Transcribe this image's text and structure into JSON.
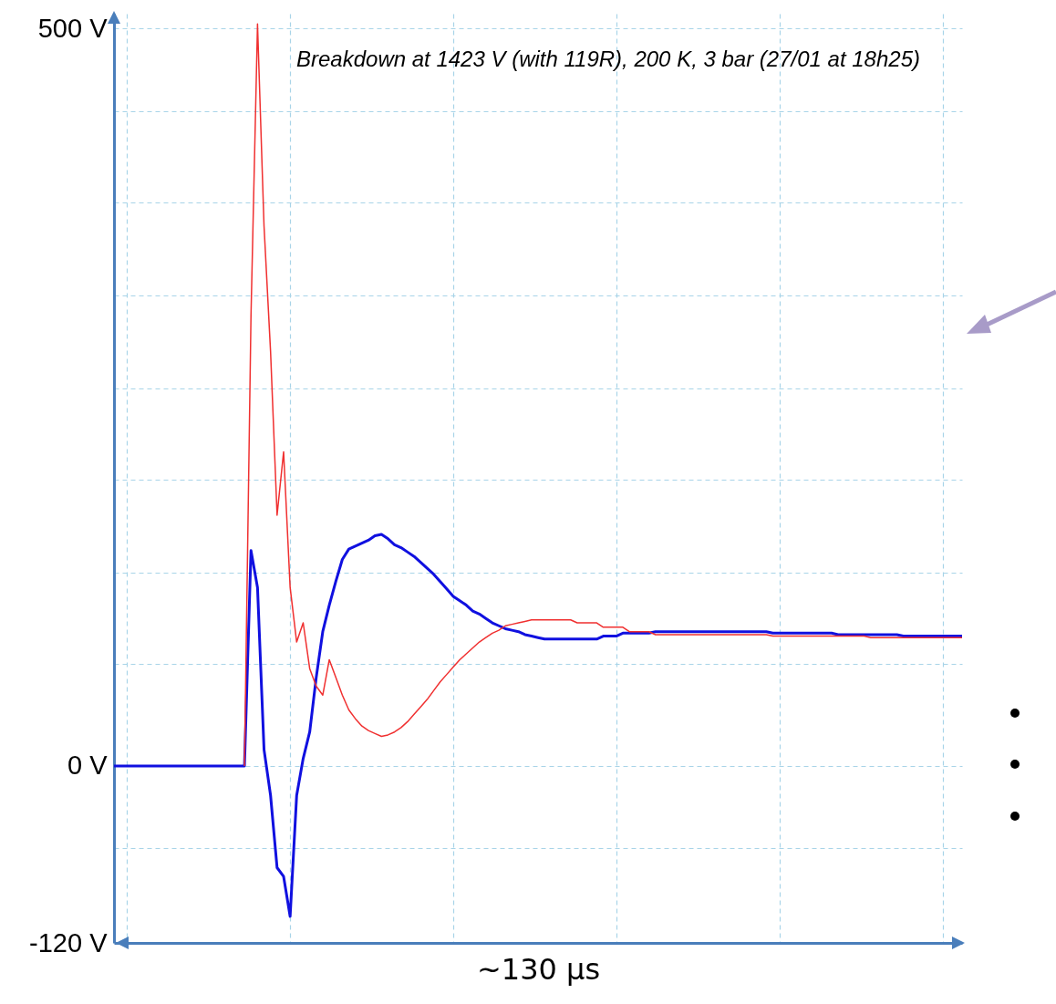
{
  "chart_data": {
    "type": "line",
    "xlabel": "~130 µs",
    "annotations": [
      "Breakdown at 1423 V (with 119R), 200 K, 3 bar (27/01 at 18h25)"
    ],
    "categories": [
      null,
      null,
      null,
      null,
      null,
      null,
      null,
      null,
      null,
      null,
      null,
      null,
      null,
      null,
      null,
      null,
      null,
      null,
      null,
      null,
      null,
      null,
      null,
      null,
      null,
      null,
      null,
      null,
      null,
      null,
      null,
      null,
      null,
      null,
      null,
      null,
      null,
      null,
      null,
      null,
      null,
      null,
      null,
      null,
      null,
      null,
      null,
      null,
      null,
      null,
      null,
      null,
      null,
      null,
      null,
      null,
      null,
      null,
      null,
      null,
      null,
      null,
      null,
      null,
      null,
      null,
      null,
      null,
      null,
      null,
      null,
      null,
      null,
      null,
      null,
      null,
      null,
      null,
      null,
      null,
      null,
      null,
      null,
      null,
      null,
      null,
      null,
      null,
      null,
      null,
      null,
      null,
      null,
      null,
      null,
      null,
      null,
      null,
      null,
      null,
      null,
      null,
      null,
      null,
      null,
      null,
      null,
      null,
      null,
      null,
      null,
      null,
      null,
      null,
      null,
      null,
      null,
      null,
      null,
      null,
      null,
      null,
      null,
      null,
      null,
      null,
      null,
      null,
      null,
      null,
      null
    ],
    "ylim": [
      -120,
      510
    ],
    "yticks": [
      {
        "value": -120,
        "label": "-120 V"
      },
      {
        "value": -56,
        "label": null
      },
      {
        "value": 0,
        "label": "0 V"
      },
      {
        "value": 69,
        "label": null
      },
      {
        "value": 131,
        "label": null
      },
      {
        "value": 194,
        "label": null
      },
      {
        "value": 256,
        "label": null
      },
      {
        "value": 319,
        "label": null
      },
      {
        "value": 382,
        "label": null
      },
      {
        "value": 444,
        "label": null
      },
      {
        "value": 500,
        "label": "500 V"
      }
    ],
    "grid": true,
    "tick_labels": "y",
    "marker": "none",
    "line_style": "solid",
    "series": [
      {
        "color": "#f03030",
        "values": [
          null,
          null,
          null,
          null,
          null,
          null,
          null,
          null,
          null,
          null,
          null,
          null,
          null,
          null,
          null,
          null,
          null,
          null,
          null,
          null,
          0,
          305,
          503,
          366,
          281,
          170,
          213,
          121,
          84,
          97,
          66,
          54,
          48,
          72,
          60,
          48,
          38,
          32,
          27,
          24,
          22,
          20,
          21,
          23,
          26,
          30,
          35,
          40,
          45,
          51,
          57,
          62,
          67,
          72,
          76,
          80,
          84,
          87,
          90,
          92,
          95,
          96,
          97,
          98,
          99,
          99,
          99,
          99,
          99,
          99,
          99,
          97,
          97,
          97,
          97,
          94,
          94,
          94,
          94,
          91,
          91,
          91,
          91,
          89,
          89,
          89,
          89,
          89,
          89,
          89,
          89,
          89,
          89,
          89,
          89,
          89,
          89,
          89,
          89,
          89,
          89,
          88,
          88,
          88,
          88,
          88,
          88,
          88,
          88,
          88,
          88,
          88,
          88,
          88,
          88,
          88,
          87,
          87,
          87,
          87,
          87,
          87,
          87,
          87,
          87,
          87,
          87,
          87,
          87,
          87,
          87
        ]
      },
      {
        "color": "#1010e0",
        "values": [
          0,
          0,
          0,
          0,
          0,
          0,
          0,
          0,
          0,
          0,
          0,
          0,
          0,
          0,
          0,
          0,
          0,
          0,
          0,
          0,
          0,
          146,
          121,
          11,
          -20,
          -69,
          -75,
          -102,
          -20,
          5,
          23,
          60,
          91,
          109,
          125,
          140,
          147,
          149,
          151,
          153,
          156,
          157,
          154,
          150,
          148,
          145,
          142,
          138,
          134,
          130,
          125,
          120,
          115,
          112,
          109,
          105,
          103,
          100,
          97,
          95,
          93,
          92,
          91,
          89,
          88,
          87,
          86,
          86,
          86,
          86,
          86,
          86,
          86,
          86,
          86,
          88,
          88,
          88,
          90,
          90,
          90,
          90,
          90,
          91,
          91,
          91,
          91,
          91,
          91,
          91,
          91,
          91,
          91,
          91,
          91,
          91,
          91,
          91,
          91,
          91,
          91,
          90,
          90,
          90,
          90,
          90,
          90,
          90,
          90,
          90,
          90,
          89,
          89,
          89,
          89,
          89,
          89,
          89,
          89,
          89,
          89,
          88,
          88,
          88,
          88,
          88,
          88,
          88,
          88,
          88,
          88
        ]
      }
    ]
  }
}
